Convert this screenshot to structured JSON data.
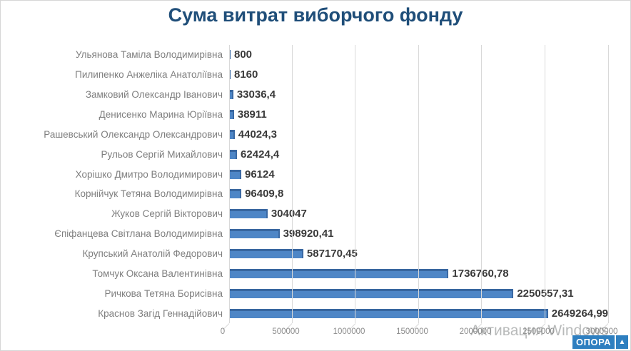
{
  "page_title": "Сума витрат виборчого фонду",
  "watermark_text": "Активация Windows",
  "logo": {
    "text": "ОПОРА",
    "triangle": "▲",
    "color": "#2e7fc0"
  },
  "colors": {
    "title": "#1f4e79",
    "bar_main": "#4e86c6",
    "bar_top_edge": "#38669f",
    "bar_right_edge": "#3a69a3",
    "category_label": "#7f7f7f",
    "value_label": "#3a3a3a",
    "gridline": "#d9d9d9",
    "tick_label": "#8c8c8c"
  },
  "chart_data": {
    "type": "bar",
    "orientation": "horizontal",
    "style": "3d",
    "title": "Сума витрат виборчого фонду",
    "xlabel": "",
    "ylabel": "",
    "xlim": [
      0,
      3000000
    ],
    "x_ticks": [
      "0",
      "500000",
      "1000000",
      "1500000",
      "2000000",
      "2500000",
      "3000000"
    ],
    "x_tick_values": [
      0,
      500000,
      1000000,
      1500000,
      2000000,
      2500000,
      3000000
    ],
    "grid": true,
    "legend": false,
    "categories": [
      "Ульянова Таміла Володимирівна",
      "Пилипенко Анжеліка Анатоліївна",
      "Замковий Олександр Іванович",
      "Денисенко Марина Юріївна",
      "Рашевський Олександр Олександрович",
      "Рульов Сергій Михайлович",
      "Хорішко Дмитро Володимирович",
      "Корнійчук Тетяна Володимирівна",
      "Жуков Сергій Вікторович",
      "Єпіфанцева Світлана Володимирівна",
      "Крупський Анатолій Федорович",
      "Томчук Оксана Валентинівна",
      "Ричкова Тетяна Борисівна",
      "Краснов Загід Геннадійович"
    ],
    "values": [
      800,
      8160,
      33036.4,
      38911,
      44024.3,
      62424.4,
      96124,
      96409.8,
      304047,
      398920.41,
      587170.45,
      1736760.78,
      2250557.31,
      2649264.99
    ],
    "value_labels": [
      "800",
      "8160",
      "33036,4",
      "38911",
      "44024,3",
      "62424,4",
      "96124",
      "96409,8",
      "304047",
      "398920,41",
      "587170,45",
      "1736760,78",
      "2250557,31",
      "2649264,99"
    ]
  }
}
